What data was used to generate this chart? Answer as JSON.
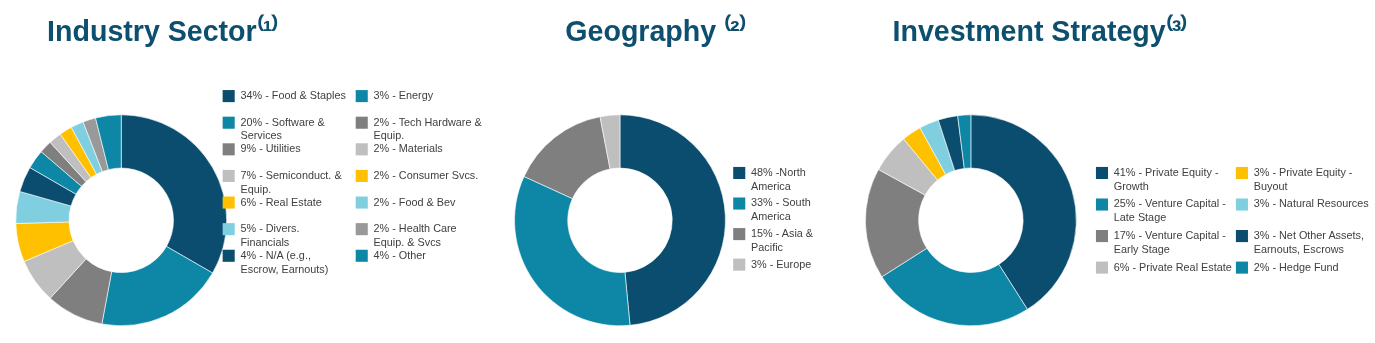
{
  "chart_data": [
    {
      "type": "donut",
      "title": "Industry Sector⁽¹⁾",
      "legend": "right",
      "categories": [
        "34% - Food & Staples",
        "20% - Software & Services",
        "9% - Utilities",
        "7% - Semiconduct. & Equip.",
        "6% - Real Estate",
        "5% - Divers. Financials",
        "4% - N/A (e.g., Escrow, Earnouts)",
        "3% - Energy",
        "2% - Tech Hardware & Equip.",
        "2% - Materials",
        "2% - Consumer Svcs.",
        "2% - Food & Bev",
        "2% - Health Care Equip. & Svcs",
        "4% - Other"
      ],
      "values": [
        34,
        20,
        9,
        7,
        6,
        5,
        4,
        3,
        2,
        2,
        2,
        2,
        2,
        4
      ],
      "colors": [
        "#0b4d6e",
        "#0e87a6",
        "#7f7f7f",
        "#bfbfbf",
        "#ffc000",
        "#7fcfe0",
        "#0b4d6e",
        "#0e87a6",
        "#7f7f7f",
        "#bfbfbf",
        "#ffc000",
        "#7fcfe0",
        "#999999",
        "#0e87a6"
      ]
    },
    {
      "type": "donut",
      "title": "Geography ⁽²⁾",
      "legend": "right",
      "categories": [
        "48% -North America",
        "33% - South America",
        "15% - Asia & Pacific",
        "3% - Europe"
      ],
      "values": [
        48,
        33,
        15,
        3
      ],
      "colors": [
        "#0b4d6e",
        "#0e87a6",
        "#7f7f7f",
        "#bfbfbf"
      ]
    },
    {
      "type": "donut",
      "title": "Investment Strategy⁽³⁾",
      "legend": "right",
      "categories": [
        "41% - Private Equity - Growth",
        "25% - Venture Capital - Late Stage",
        "17% - Venture Capital - Early Stage",
        "6% - Private Real Estate",
        "3% - Private Equity - Buyout",
        "3% - Natural Resources",
        "3% - Net Other Assets, Earnouts, Escrows",
        "2% - Hedge Fund"
      ],
      "values": [
        41,
        25,
        17,
        6,
        3,
        3,
        3,
        2
      ],
      "colors": [
        "#0b4d6e",
        "#0e87a6",
        "#7f7f7f",
        "#bfbfbf",
        "#ffc000",
        "#7fcfe0",
        "#0b4d6e",
        "#0e87a6"
      ]
    }
  ]
}
